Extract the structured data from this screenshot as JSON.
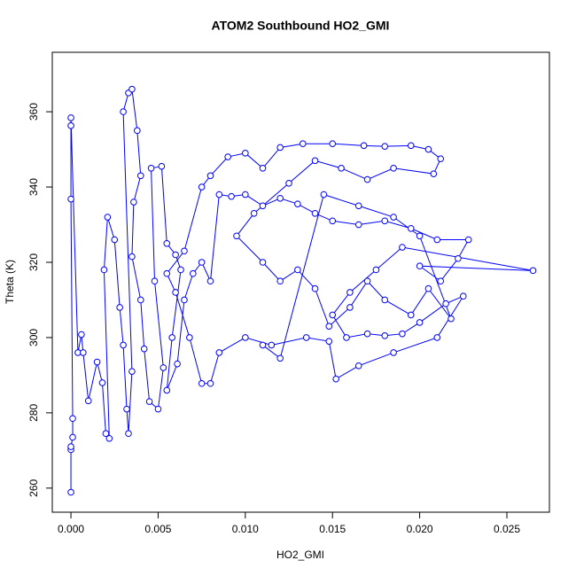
{
  "chart_data": {
    "type": "line",
    "title": "ATOM2 Southbound HO2_GMI",
    "xlabel": "HO2_GMI",
    "ylabel": "Theta (K)",
    "color": "#0000ff",
    "markers": true,
    "x": [
      0.0,
      0.0,
      0.0,
      0.0001,
      0.0001,
      0.0,
      0.0,
      0.0,
      0.0004,
      0.0006,
      0.0007,
      0.001,
      0.0015,
      0.0018,
      0.002,
      0.0022,
      0.0019,
      0.0021,
      0.0025,
      0.0028,
      0.003,
      0.0032,
      0.0033,
      0.0035,
      0.003,
      0.0033,
      0.0035,
      0.0038,
      0.004,
      0.0036,
      0.0035,
      0.004,
      0.0042,
      0.0045,
      0.005,
      0.0053,
      0.0048,
      0.0046,
      0.0052,
      0.0055,
      0.006,
      0.0063,
      0.0058,
      0.0055,
      0.0061,
      0.0065,
      0.007,
      0.0075,
      0.008,
      0.0085,
      0.0092,
      0.01,
      0.011,
      0.012,
      0.013,
      0.014,
      0.015,
      0.0165,
      0.018,
      0.0195,
      0.021,
      0.0228,
      0.0222,
      0.0212,
      0.02,
      0.0265,
      0.019,
      0.0175,
      0.016,
      0.015,
      0.0158,
      0.017,
      0.018,
      0.019,
      0.02,
      0.0215,
      0.0225,
      0.021,
      0.0185,
      0.0165,
      0.0152,
      0.0148,
      0.0135,
      0.0115,
      0.01,
      0.0085,
      0.008,
      0.0075,
      0.0068,
      0.006,
      0.0055,
      0.0065,
      0.0075,
      0.008,
      0.009,
      0.01,
      0.011,
      0.012,
      0.0133,
      0.015,
      0.0168,
      0.018,
      0.0195,
      0.0205,
      0.0212,
      0.0208,
      0.0185,
      0.017,
      0.0155,
      0.014,
      0.0125,
      0.0105,
      0.0095,
      0.011,
      0.012,
      0.013,
      0.014,
      0.0148,
      0.016,
      0.017,
      0.018,
      0.0195,
      0.0205,
      0.0218,
      0.02,
      0.0185,
      0.0165,
      0.0145,
      0.012,
      0.011
    ],
    "values": [
      258.9,
      270.2,
      271.0,
      273.5,
      278.5,
      336.8,
      356.3,
      358.4,
      296.0,
      300.8,
      296.0,
      283.2,
      293.5,
      288.0,
      274.5,
      273.2,
      318.0,
      332.0,
      326.0,
      308.0,
      298.0,
      281.0,
      274.5,
      291.0,
      360.0,
      365.0,
      366.0,
      355.0,
      343.0,
      336.0,
      321.5,
      310.0,
      297.0,
      283.0,
      281.0,
      292.0,
      315.0,
      345.0,
      345.5,
      325.0,
      322.0,
      318.0,
      300.0,
      286.0,
      293.0,
      310.0,
      317.0,
      320.0,
      315.0,
      338.0,
      337.5,
      338.0,
      335.0,
      337.0,
      335.5,
      333.0,
      331.0,
      330.0,
      331.0,
      329.0,
      326.0,
      326.0,
      321.0,
      315.0,
      319.0,
      317.8,
      324.0,
      318.0,
      312.0,
      306.0,
      300.0,
      301.0,
      300.5,
      301.0,
      304.0,
      309.0,
      311.0,
      300.0,
      296.0,
      292.5,
      289.0,
      299.0,
      300.0,
      298.0,
      300.0,
      296.0,
      287.8,
      287.8,
      300.0,
      312.0,
      317.0,
      323.0,
      340.0,
      343.0,
      348.0,
      349.0,
      345.0,
      350.5,
      351.5,
      351.5,
      351.0,
      350.8,
      351.0,
      350.0,
      347.5,
      343.5,
      345.0,
      342.0,
      345.0,
      347.0,
      341.0,
      333.0,
      327.0,
      320.0,
      315.0,
      318.0,
      313.0,
      303.0,
      308.0,
      315.0,
      310.0,
      306.0,
      313.0,
      305.0,
      327.0,
      332.0,
      335.0,
      338.0,
      294.5,
      298.0
    ],
    "xlim": [
      -0.00107,
      0.02744
    ],
    "ylim": [
      253.6,
      375.8
    ],
    "xticks": [
      {
        "value": 0,
        "label": "0.000"
      },
      {
        "value": 0.005,
        "label": "0.005"
      },
      {
        "value": 0.01,
        "label": "0.010"
      },
      {
        "value": 0.015,
        "label": "0.015"
      },
      {
        "value": 0.02,
        "label": "0.020"
      },
      {
        "value": 0.025,
        "label": "0.025"
      }
    ],
    "yticks": [
      260,
      280,
      300,
      320,
      340,
      360
    ]
  }
}
